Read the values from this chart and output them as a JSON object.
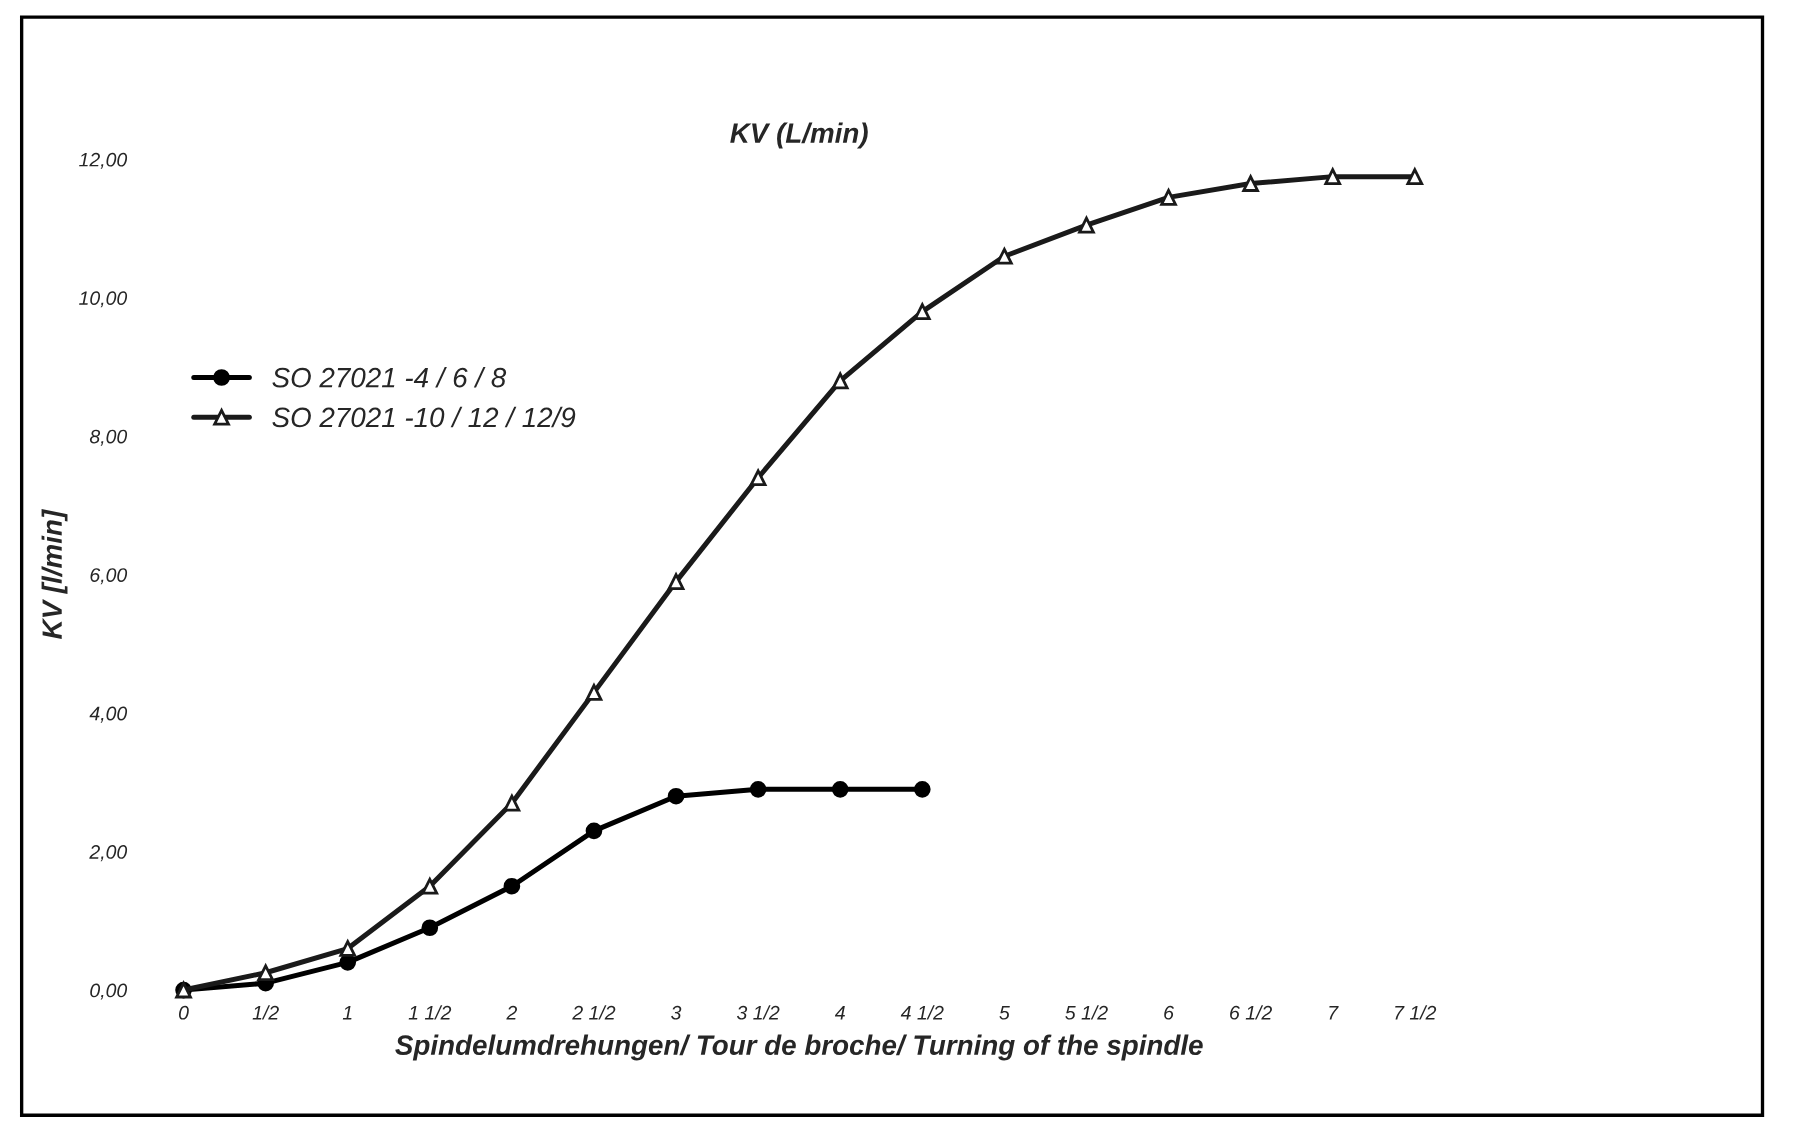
{
  "chart_data": {
    "type": "line",
    "title": "KV (L/min)",
    "xlabel": "Spindelumdrehungen/ Tour de broche/ Turning of the spindle",
    "ylabel": "KV [l/min]",
    "categories": [
      "0",
      "1/2",
      "1",
      "1 1/2",
      "2",
      "2 1/2",
      "3",
      "3 1/2",
      "4",
      "4 1/2",
      "5",
      "5 1/2",
      "6",
      "6 1/2",
      "7",
      "7 1/2"
    ],
    "series": [
      {
        "name": "SO 27021 -4 / 6 / 8",
        "color": "#000000",
        "marker": "circle",
        "values": [
          0,
          0.1,
          0.4,
          0.9,
          1.5,
          2.3,
          2.8,
          2.9,
          2.9,
          2.9,
          null,
          null,
          null,
          null,
          null,
          null
        ]
      },
      {
        "name": "SO 27021 -10 / 12 / 12/9",
        "color": "#1a1a1a",
        "marker": "triangle",
        "values": [
          0,
          0.25,
          0.6,
          1.5,
          2.7,
          4.3,
          5.9,
          7.4,
          8.8,
          9.8,
          10.6,
          11.05,
          11.45,
          11.65,
          11.75,
          11.75
        ]
      }
    ],
    "ylim": [
      0,
      12
    ],
    "yticks": [
      {
        "value": 0,
        "label": "0,00"
      },
      {
        "value": 2,
        "label": "2,00"
      },
      {
        "value": 4,
        "label": "4,00"
      },
      {
        "value": 6,
        "label": "6,00"
      },
      {
        "value": 8,
        "label": "8,00"
      },
      {
        "value": 10,
        "label": "10,00"
      },
      {
        "value": 12,
        "label": "12,00"
      }
    ],
    "grid": false,
    "legend": "top left",
    "line_style": "solid"
  }
}
